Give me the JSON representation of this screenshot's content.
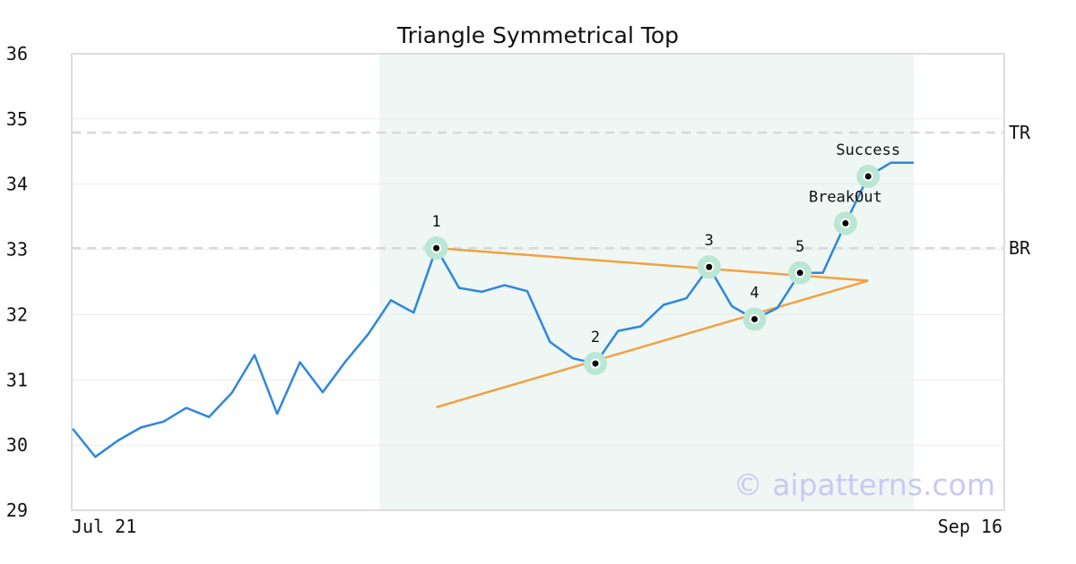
{
  "chart_data": {
    "type": "line",
    "title": "Triangle Symmetrical Top",
    "ylim": [
      29,
      36
    ],
    "yticks": [
      "29",
      "30",
      "31",
      "32",
      "33",
      "34",
      "35",
      "36"
    ],
    "x_tick_labels": [
      "Jul 21",
      "Sep 16"
    ],
    "grid": "horizontal",
    "series": [
      {
        "color": "#2e86de",
        "values": [
          30.25,
          29.82,
          30.07,
          30.27,
          30.36,
          30.57,
          30.43,
          30.8,
          31.38,
          30.48,
          31.27,
          30.81,
          31.28,
          31.7,
          32.22,
          32.03,
          33.02,
          32.41,
          32.35,
          32.45,
          32.36,
          31.58,
          31.33,
          31.25,
          31.75,
          31.82,
          32.15,
          32.25,
          32.73,
          32.13,
          31.93,
          32.1,
          32.64,
          32.64,
          33.4,
          34.12,
          34.33,
          34.33
        ]
      }
    ],
    "shaded_region": {
      "start_index": 14,
      "end_index": 37,
      "color": "#eef7f3"
    },
    "trendlines": [
      {
        "color": "#f5a040",
        "points": [
          [
            16,
            33.02
          ],
          [
            35,
            32.52
          ]
        ]
      },
      {
        "color": "#f5a040",
        "points": [
          [
            16,
            30.58
          ],
          [
            35,
            32.52
          ]
        ]
      }
    ],
    "horizontal_lines": [
      {
        "label": "TR",
        "y": 34.79
      },
      {
        "label": "BR",
        "y": 33.02
      }
    ],
    "pattern_points": [
      {
        "label": "1",
        "index": 16,
        "y": 33.02
      },
      {
        "label": "2",
        "index": 23,
        "y": 31.25
      },
      {
        "label": "3",
        "index": 28,
        "y": 32.73
      },
      {
        "label": "4",
        "index": 30,
        "y": 31.93
      },
      {
        "label": "5",
        "index": 32,
        "y": 32.64
      }
    ],
    "annotations": [
      {
        "label": "BreakOut",
        "index": 34,
        "y": 33.4
      },
      {
        "label": "Success",
        "index": 35,
        "y": 34.12
      }
    ],
    "colors": {
      "line": "#2e86de",
      "trend": "#f5a040",
      "marker_halo": "#b9e7d3",
      "ref_line": "#d9d9d9",
      "shade": "#eef7f3"
    }
  },
  "watermark": "© aipatterns.com"
}
